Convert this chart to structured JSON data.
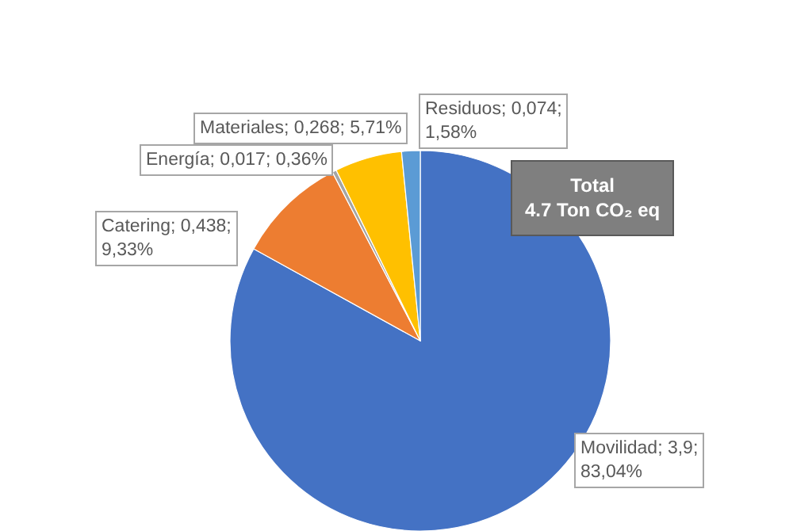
{
  "chart_data": {
    "type": "pie",
    "categories": [
      "Movilidad",
      "Catering",
      "Energía",
      "Materiales",
      "Residuos"
    ],
    "values": [
      3.9,
      0.438,
      0.017,
      0.268,
      0.074
    ],
    "colors": [
      "#4472c4",
      "#ed7d31",
      "#a5a5a5",
      "#ffc000",
      "#5b9bd5"
    ],
    "value_labels": [
      "3,9;\n83,04%",
      "0,438;\n9,33%",
      "0,017; 0,36%",
      "0,268; 5,71%",
      "0,074;\n1,58%"
    ],
    "annotations": [
      "Total\n4.7 Ton CO₂ eq"
    ],
    "legend": false
  }
}
